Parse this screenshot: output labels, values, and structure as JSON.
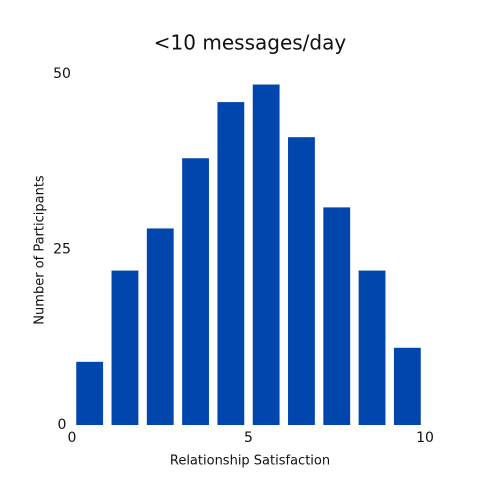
{
  "chart_data": {
    "type": "histogram",
    "title": "<10 messages/day",
    "xlabel": "Relationship Satisfaction",
    "ylabel": "Number of Participants",
    "bins": [
      0,
      1,
      2,
      3,
      4,
      5,
      6,
      7,
      8,
      9,
      10
    ],
    "values": [
      9,
      22,
      28,
      38,
      46,
      48.5,
      41,
      31,
      22,
      11
    ],
    "color": "#0046ad",
    "xlim": [
      0,
      10
    ],
    "xticks": [
      0,
      5,
      10
    ],
    "ylim": [
      0,
      50
    ],
    "yticks": [
      0,
      25,
      50
    ],
    "grid": false
  }
}
